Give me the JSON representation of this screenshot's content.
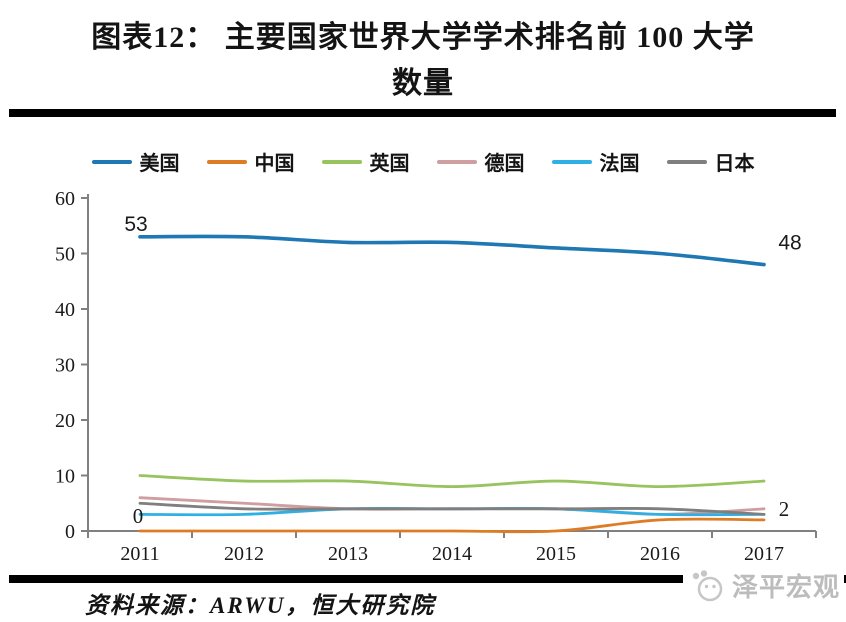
{
  "page": {
    "title_line1": "图表12： 主要国家世界大学学术排名前 100 大学",
    "title_line2": "数量",
    "source": "资料来源：ARWU，恒大研究院",
    "watermark": "泽平宏观"
  },
  "chart_data": {
    "type": "line",
    "title": "图表12：主要国家世界大学学术排名前 100 大学数量",
    "x": [
      2011,
      2012,
      2013,
      2014,
      2015,
      2016,
      2017
    ],
    "series": [
      {
        "name": "美国",
        "color": "#1F77B4",
        "values": [
          53,
          53,
          52,
          52,
          51,
          50,
          48
        ]
      },
      {
        "name": "中国",
        "color": "#DE7C26",
        "values": [
          0,
          0,
          0,
          0,
          0,
          2,
          2
        ]
      },
      {
        "name": "英国",
        "color": "#97C45F",
        "values": [
          10,
          9,
          9,
          8,
          9,
          8,
          9
        ]
      },
      {
        "name": "德国",
        "color": "#CF9EA0",
        "values": [
          6,
          5,
          4,
          4,
          4,
          3,
          4
        ]
      },
      {
        "name": "法国",
        "color": "#2FB0E4",
        "values": [
          3,
          3,
          4,
          4,
          4,
          3,
          3
        ]
      },
      {
        "name": "日本",
        "color": "#7F7F7F",
        "values": [
          5,
          4,
          4,
          4,
          4,
          4,
          3
        ]
      }
    ],
    "xlabel": "",
    "ylabel": "",
    "ylim": [
      0,
      60
    ],
    "ytick_step": 10,
    "grid": false,
    "legend_position": "top",
    "smooth": true,
    "axis_color": "#808080",
    "annotations": [
      {
        "series": "美国",
        "x": 2011,
        "text": "53"
      },
      {
        "series": "美国",
        "x": 2017,
        "text": "48"
      },
      {
        "series": "中国",
        "x": 2011,
        "text": "0"
      },
      {
        "series": "中国",
        "x": 2017,
        "text": "2"
      }
    ]
  }
}
